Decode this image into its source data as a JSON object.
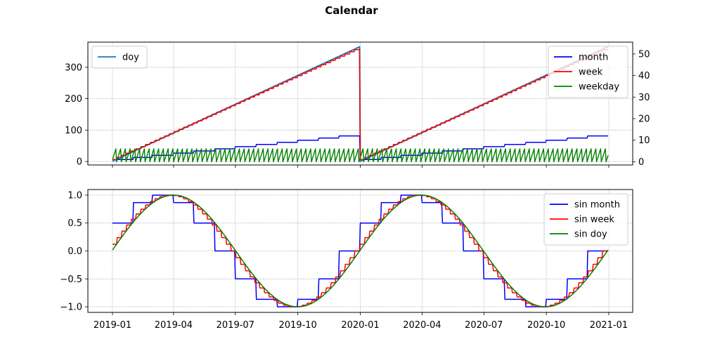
{
  "figure": {
    "title": "Calendar"
  },
  "chart_data": [
    {
      "type": "line",
      "x_range": [
        "2019-01-01",
        "2020-12-31"
      ],
      "xticks": [
        "2019-01",
        "2019-04",
        "2019-07",
        "2019-10",
        "2020-01",
        "2020-04",
        "2020-07",
        "2020-10",
        "2021-01"
      ],
      "grid": true,
      "left_axis": {
        "ylim": [
          -11,
          380
        ],
        "ticks": [
          0,
          100,
          200,
          300
        ],
        "legend": "top-left"
      },
      "right_axis": {
        "ylim": [
          -1.5,
          55.5
        ],
        "ticks": [
          0,
          10,
          20,
          30,
          40,
          50
        ],
        "legend": "top-right"
      },
      "series": [
        {
          "name": "doy",
          "axis": "left",
          "color": "#1f77b4",
          "x": [
            "2019-01-01",
            "2019-12-31",
            "2020-01-01",
            "2020-12-31"
          ],
          "values": [
            1,
            365,
            1,
            366
          ]
        },
        {
          "name": "month",
          "axis": "right",
          "color": "#0000ff",
          "style": "monthly step",
          "values_per_month": [
            1,
            2,
            3,
            4,
            5,
            6,
            7,
            8,
            9,
            10,
            11,
            12
          ]
        },
        {
          "name": "week",
          "axis": "right",
          "color": "#ff0000",
          "style": "weekly step",
          "range": [
            1,
            52
          ]
        },
        {
          "name": "weekday",
          "axis": "right",
          "color": "#008000",
          "style": "daily sawtooth",
          "range": [
            0,
            6
          ]
        }
      ]
    },
    {
      "type": "line",
      "x_range": [
        "2019-01-01",
        "2020-12-31"
      ],
      "xticks": [
        "2019-01",
        "2019-04",
        "2019-07",
        "2019-10",
        "2020-01",
        "2020-04",
        "2020-07",
        "2020-10",
        "2021-01"
      ],
      "grid": true,
      "ylim": [
        -1.1,
        1.1
      ],
      "yticks": [
        1.0,
        0.5,
        0.0,
        -0.5,
        -1.0
      ],
      "ytick_labels": [
        "1.0",
        "0.5",
        "0.0",
        "−0.5",
        "−1.0"
      ],
      "legend": "top-right",
      "series": [
        {
          "name": "sin month",
          "color": "#0000ff",
          "values_per_month": [
            0.5,
            0.866,
            1.0,
            0.866,
            0.5,
            0.0,
            -0.5,
            -0.866,
            -1.0,
            -0.866,
            -0.5,
            0.0
          ]
        },
        {
          "name": "sin week",
          "color": "#ff0000",
          "style": "weekly step of sin(2π·week/52)"
        },
        {
          "name": "sin doy",
          "color": "#008000",
          "style": "sin(2π·doy/365)"
        }
      ]
    }
  ]
}
